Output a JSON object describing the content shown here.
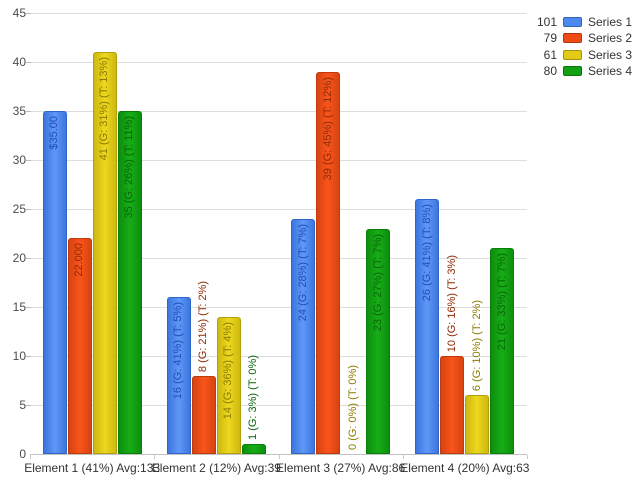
{
  "chart_data": {
    "type": "bar",
    "title": "",
    "xlabel": "",
    "ylabel": "",
    "ylim": [
      0,
      45
    ],
    "ytick_step": 5,
    "grid": true,
    "legend_position": "top-right",
    "categories": [
      "Element 1 (41%) Avg:133",
      "Element 2 (12%) Avg:39",
      "Element 3 (27%) Avg:86",
      "Element 4 (20%) Avg:63"
    ],
    "series": [
      {
        "name": "Series 1",
        "legend_value": "101",
        "color": "blue",
        "values": [
          35,
          16,
          24,
          26
        ],
        "bar_labels": [
          "$35.00",
          "16 (G: 41%) (T: 5%)",
          "24 (G: 28%) (T: 7%)",
          "26 (G: 41%) (T: 8%)"
        ]
      },
      {
        "name": "Series 2",
        "legend_value": "79",
        "color": "red",
        "values": [
          22,
          8,
          39,
          10
        ],
        "bar_labels": [
          "22.000",
          "8 (G: 21%) (T: 2%)",
          "39 (G: 45%) (T: 12%)",
          "10 (G: 16%) (T: 3%)"
        ]
      },
      {
        "name": "Series 3",
        "legend_value": "61",
        "color": "yellow",
        "values": [
          41,
          14,
          0,
          6
        ],
        "bar_labels": [
          "41 (G: 31%) (T: 13%)",
          "14 (G: 36%) (T: 4%)",
          "0 (G: 0%) (T: 0%)",
          "6 (G: 10%) (T: 2%)"
        ]
      },
      {
        "name": "Series 4",
        "legend_value": "80",
        "color": "green",
        "values": [
          35,
          1,
          23,
          21
        ],
        "bar_labels": [
          "35 (G: 26%) (T: 11%)",
          "1 (G: 3%) (T: 0%)",
          "23 (G: 27%) (T: 7%)",
          "21 (G: 33%) (T: 7%)"
        ]
      }
    ]
  },
  "colors": {
    "blue": {
      "fill_dark": "#3B76DE",
      "fill_light": "#5F98F7",
      "border": "#2F66CC",
      "label_text": "#1F4EB8",
      "swatch": "#4C89F0"
    },
    "red": {
      "fill_dark": "#D84310",
      "fill_light": "#F8551B",
      "border": "#C03A0C",
      "label_text": "#8F2B05",
      "swatch": "#EF4C15"
    },
    "yellow": {
      "fill_dark": "#CDB90F",
      "fill_light": "#EED71F",
      "border": "#B3A10C",
      "label_text": "#8A7C00",
      "swatch": "#E2CB17"
    },
    "green": {
      "fill_dark": "#0D8F0D",
      "fill_light": "#17AD17",
      "border": "#0A7E0A",
      "label_text": "#0B650B",
      "swatch": "#12A112"
    }
  },
  "axis": {
    "tick_label_color": "#4c4c4c",
    "category_label_color": "#333333",
    "gridline_color": "#dddddd",
    "baseline_color": "#c2c2c2"
  }
}
